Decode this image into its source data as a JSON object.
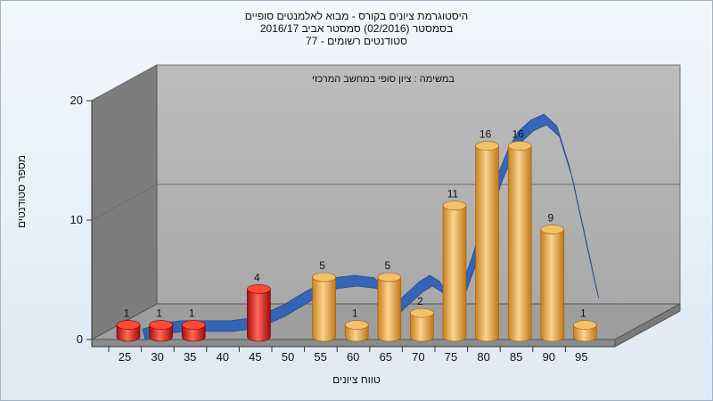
{
  "titles": {
    "line1": "היסטוגרמת ציונים בקורס - מבוא לאלמנטים סופיים",
    "line2": "בסמסטר  (02/2016)  סמסטר אביב 2016/17",
    "line3": "סטודנטים רשומים - 77"
  },
  "chart_data": {
    "type": "bar",
    "title": "היסטוגרמת ציונים בקורס - מבוא לאלמנטים סופיים",
    "annotation": "במשימה : ציון סופי במחשב המרכזי",
    "xlabel": "טווח ציונים",
    "ylabel": "מספר סטודנטים",
    "categories": [
      "25",
      "30",
      "35",
      "40",
      "45",
      "50",
      "55",
      "60",
      "65",
      "70",
      "75",
      "80",
      "85",
      "90",
      "95"
    ],
    "values": [
      1,
      1,
      1,
      null,
      4,
      null,
      5,
      1,
      5,
      2,
      11,
      16,
      16,
      9,
      1
    ],
    "bar_colors": [
      "red",
      "red",
      "red",
      null,
      "red",
      null,
      "orange",
      "orange",
      "orange",
      "orange",
      "orange",
      "orange",
      "orange",
      "orange",
      "orange"
    ],
    "ylim": [
      0,
      20
    ],
    "yticks": [
      0,
      10,
      20
    ],
    "trend_ribbon": {
      "x": [
        26.5,
        29.5,
        32.5,
        36,
        40,
        44,
        48,
        52,
        56,
        59,
        62,
        63.5,
        65,
        67,
        69,
        70.5,
        72,
        73.5,
        75,
        77,
        79,
        81,
        82.5,
        84,
        86,
        88,
        90,
        92,
        94,
        96
      ],
      "y": [
        0.5,
        1,
        1.2,
        1.2,
        1.2,
        1.5,
        2.5,
        3.8,
        4.8,
        5,
        4.8,
        4,
        2.5,
        3.5,
        4.5,
        5,
        4.5,
        3.2,
        3.5,
        6.5,
        10,
        13.5,
        15.5,
        17,
        18,
        18.5,
        17.5,
        14,
        9,
        4
      ]
    },
    "colors": {
      "red": "#e01818",
      "orange": "#e8a030",
      "ribbon": "#2e62b8"
    },
    "grid": true
  }
}
